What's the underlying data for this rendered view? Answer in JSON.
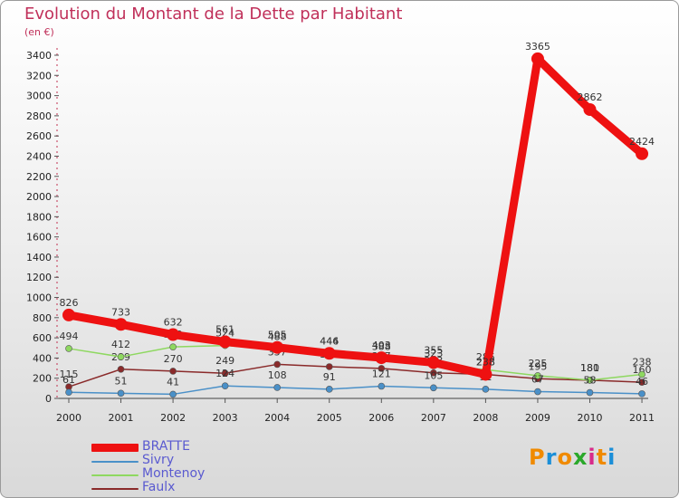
{
  "chart_data": {
    "type": "line",
    "title": "Evolution du Montant de la Dette par Habitant",
    "subtitle": "(en €)",
    "categories": [
      "2000",
      "2001",
      "2002",
      "2003",
      "2004",
      "2005",
      "2006",
      "2007",
      "2008",
      "2009",
      "2010",
      "2011"
    ],
    "ylim": [
      0,
      3400
    ],
    "yticks": [
      0,
      200,
      400,
      600,
      800,
      1000,
      1200,
      1400,
      1600,
      1800,
      2000,
      2200,
      2400,
      2600,
      2800,
      3000,
      3200,
      3400
    ],
    "grid": false,
    "legend_position": "bottom-left",
    "series": [
      {
        "name": "BRATTE",
        "color": "#ee1111",
        "values": [
          826,
          733,
          632,
          561,
          505,
          446,
          403,
          355,
          238,
          3365,
          2862,
          2424
        ]
      },
      {
        "name": "Sivry",
        "color": "#4a90c8",
        "values": [
          61,
          51,
          41,
          124,
          108,
          91,
          121,
          105,
          91,
          67,
          58,
          46
        ]
      },
      {
        "name": "Montenoy",
        "color": "#8ed860",
        "values": [
          494,
          412,
          510,
          524,
          488,
          444,
          388,
          323,
          285,
          225,
          181,
          238
        ]
      },
      {
        "name": "Faulx",
        "color": "#8a2a2a",
        "values": [
          115,
          289,
          270,
          249,
          337,
          314,
          297,
          253,
          238,
          195,
          180,
          160
        ]
      }
    ]
  },
  "logo": {
    "letters": [
      "P",
      "r",
      "o",
      "x",
      "i",
      "t",
      "i"
    ],
    "colors": [
      "#f08a00",
      "#1b8fd8",
      "#f08a00",
      "#2aa82a",
      "#d82a8a",
      "#f08a00",
      "#1b8fd8"
    ]
  }
}
